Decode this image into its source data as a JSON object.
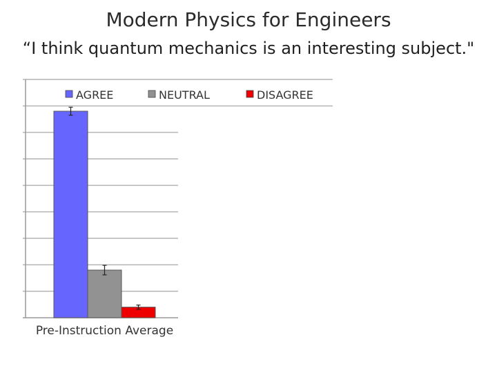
{
  "header": {
    "title": "Modern Physics for Engineers",
    "subtitle": "“I think quantum mechanics is an interesting subject.\""
  },
  "chart_data": {
    "type": "bar",
    "categories": [
      "Pre-Instruction Average"
    ],
    "series": [
      {
        "name": "AGREE",
        "color": "#6666ff",
        "values": [
          78
        ],
        "error": [
          1.5
        ]
      },
      {
        "name": "NEUTRAL",
        "color": "#929292",
        "values": [
          18
        ],
        "error": [
          1.8
        ]
      },
      {
        "name": "DISAGREE",
        "color": "#ee0000",
        "values": [
          4
        ],
        "error": [
          0.8
        ]
      }
    ],
    "ylim": [
      0,
      90
    ],
    "ytick_step": 10,
    "grid": true,
    "legend": "top",
    "title": "Modern Physics for Engineers",
    "xlabel": "",
    "ylabel": ""
  }
}
